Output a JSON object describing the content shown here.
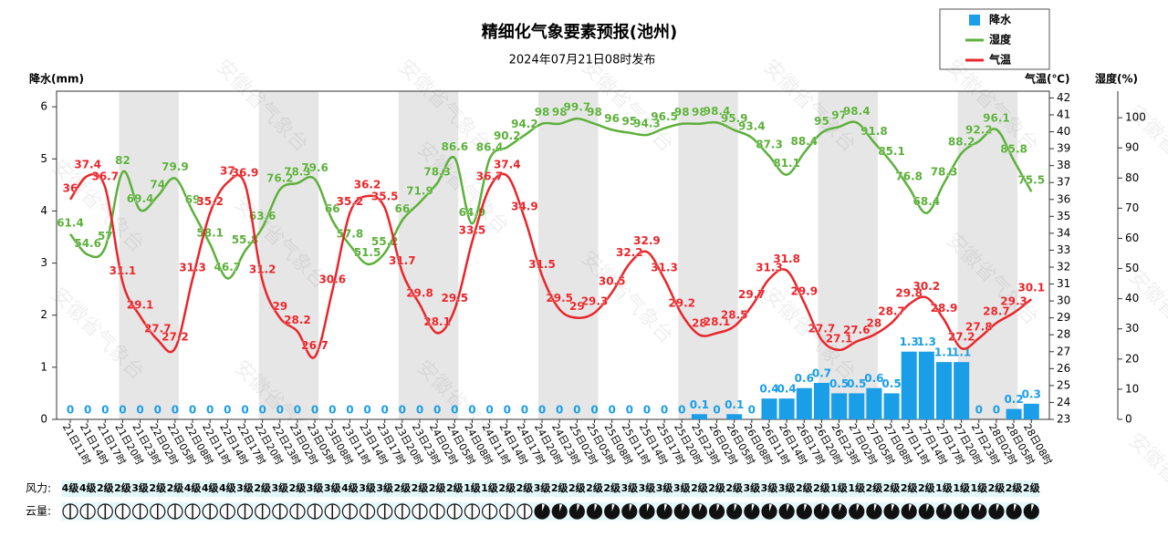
{
  "chart_data": {
    "type": "combo",
    "title": "精细化气象要素预报(池州)",
    "subtitle": "2024年07月21日08时发布",
    "watermark": "安徽省气象台",
    "ylabel": "降水(mm)",
    "y2label": "气温(℃)",
    "y3label": "湿度(%)",
    "categories": [
      "21日11时",
      "21日14时",
      "21日17时",
      "21日20时",
      "21日23时",
      "22日02时",
      "22日05时",
      "22日08时",
      "22日11时",
      "22日14时",
      "22日17时",
      "22日20时",
      "22日23时",
      "23日02时",
      "23日05时",
      "23日08时",
      "23日11时",
      "23日14时",
      "23日17时",
      "23日20时",
      "23日23时",
      "24日02时",
      "24日05时",
      "24日08时",
      "24日11时",
      "24日14时",
      "24日17时",
      "24日20时",
      "24日23时",
      "25日02时",
      "25日05时",
      "25日08时",
      "25日11时",
      "25日14时",
      "25日17时",
      "25日20时",
      "25日23时",
      "26日02时",
      "26日05时",
      "26日08时",
      "26日11时",
      "26日14时",
      "26日17时",
      "26日20时",
      "26日23时",
      "27日02时",
      "27日05时",
      "27日08时",
      "27日11时",
      "27日14时",
      "27日17时",
      "27日20时",
      "27日23时",
      "28日02时",
      "28日05时",
      "28日08时"
    ],
    "series": [
      {
        "name": "降水",
        "type": "bar",
        "color": "#1a9ee8",
        "axis": "y",
        "values": [
          0,
          0,
          0,
          0,
          0,
          0,
          0,
          0,
          0,
          0,
          0,
          0,
          0,
          0,
          0,
          0,
          0,
          0,
          0,
          0,
          0,
          0,
          0,
          0,
          0,
          0,
          0,
          0,
          0,
          0,
          0,
          0,
          0,
          0,
          0,
          0,
          0.1,
          0,
          0.1,
          0,
          0.4,
          0.4,
          0.6,
          0.7,
          0.5,
          0.5,
          0.6,
          0.5,
          1.3,
          1.3,
          1.1,
          1.1,
          0,
          0,
          0.2,
          0.3
        ]
      },
      {
        "name": "湿度",
        "type": "line",
        "color": "#5db03c",
        "axis": "y3",
        "values": [
          61.4,
          54.6,
          57,
          82,
          69.4,
          74,
          79.9,
          69,
          58.1,
          46.7,
          55.8,
          63.6,
          76.2,
          78.3,
          79.6,
          66,
          57.8,
          51.5,
          55.2,
          66,
          71.9,
          78.3,
          86.6,
          64.9,
          86.4,
          90.2,
          94.2,
          98,
          98,
          99.7,
          98,
          96,
          95,
          94.3,
          96.5,
          98,
          98,
          98.4,
          95.9,
          93.4,
          87.3,
          81.1,
          88.4,
          95,
          97,
          98.4,
          91.8,
          85.1,
          76.8,
          68.4,
          78.3,
          88.2,
          92.2,
          96.1,
          85.8,
          75.5
        ]
      },
      {
        "name": "气温",
        "type": "line",
        "color": "#e8262b",
        "axis": "y2",
        "values": [
          36,
          37.4,
          36.7,
          31.1,
          29.1,
          27.7,
          27.2,
          31.3,
          35.2,
          37,
          36.9,
          31.2,
          29,
          28.2,
          26.7,
          30.6,
          35.2,
          36.2,
          35.5,
          31.7,
          29.8,
          28.1,
          29.5,
          33.5,
          36.7,
          37.4,
          34.9,
          31.5,
          29.5,
          29,
          29.3,
          30.5,
          32.2,
          32.9,
          31.3,
          29.2,
          28,
          28.1,
          28.5,
          29.7,
          31.3,
          31.8,
          29.9,
          27.7,
          27.1,
          27.6,
          28,
          28.7,
          29.8,
          30.2,
          28.9,
          27.2,
          27.8,
          28.7,
          29.3,
          30.1
        ]
      }
    ],
    "ylim": [
      0,
      6.3
    ],
    "yticks": [
      0,
      1,
      2,
      3,
      4,
      5,
      6
    ],
    "y2lim": [
      23,
      42.4
    ],
    "y2ticks": [
      23,
      24,
      25,
      26,
      27,
      28,
      29,
      30,
      31,
      32,
      33,
      34,
      35,
      36,
      37,
      38,
      39,
      40,
      41,
      42
    ],
    "y3lim": [
      0,
      108.8
    ],
    "y3ticks": [
      0,
      10,
      20,
      30,
      40,
      50,
      60,
      70,
      80,
      90,
      100
    ],
    "wind_label": "风力:",
    "wind": [
      "4级",
      "4级",
      "2级",
      "2级",
      "3级",
      "2级",
      "2级",
      "4级",
      "4级",
      "4级",
      "3级",
      "2级",
      "3级",
      "2级",
      "3级",
      "3级",
      "4级",
      "3级",
      "3级",
      "2级",
      "2级",
      "2级",
      "2级",
      "1级",
      "1级",
      "2级",
      "2级",
      "3级",
      "2级",
      "2级",
      "2级",
      "2级",
      "3级",
      "3级",
      "3级",
      "3级",
      "2级",
      "2级",
      "2级",
      "3级",
      "3级",
      "3级",
      "2级",
      "2级",
      "1级",
      "1级",
      "2级",
      "2级",
      "2级",
      "2级",
      "1级",
      "1级",
      "1级",
      "2级",
      "2级",
      "2级"
    ],
    "cloud_label": "云量:",
    "grid": false,
    "legend": "top-right"
  }
}
